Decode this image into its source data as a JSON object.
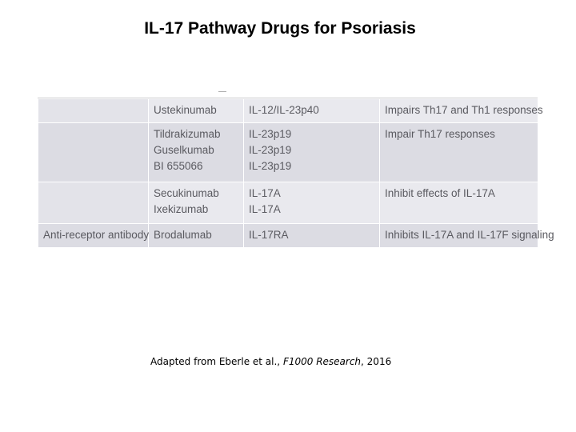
{
  "slide": {
    "title": "IL-17 Pathway Drugs for Psoriasis"
  },
  "table": {
    "rows": [
      {
        "drug_class": "",
        "drugs": [
          "Ustekinumab"
        ],
        "targets": [
          "IL-12/IL-23p40"
        ],
        "mechanism": "Impairs Th17 and Th1 responses"
      },
      {
        "drug_class": "",
        "drugs": [
          "Tildrakizumab",
          "Guselkumab",
          "BI 655066"
        ],
        "targets": [
          "IL-23p19",
          "IL-23p19",
          "IL-23p19"
        ],
        "mechanism": "Impair Th17 responses"
      },
      {
        "drug_class": "",
        "drugs": [
          "Secukinumab",
          "Ixekizumab"
        ],
        "targets": [
          "IL-17A",
          "IL-17A"
        ],
        "mechanism": "Inhibit effects of IL-17A"
      },
      {
        "drug_class": "Anti-receptor antibody",
        "drugs": [
          "Brodalumab"
        ],
        "targets": [
          "IL-17RA"
        ],
        "mechanism": "Inhibits IL-17A and IL-17F signaling"
      }
    ]
  },
  "citation": {
    "prefix": "Adapted from Eberle et al., ",
    "journal": "F1000 Research",
    "suffix": ", 2016"
  }
}
